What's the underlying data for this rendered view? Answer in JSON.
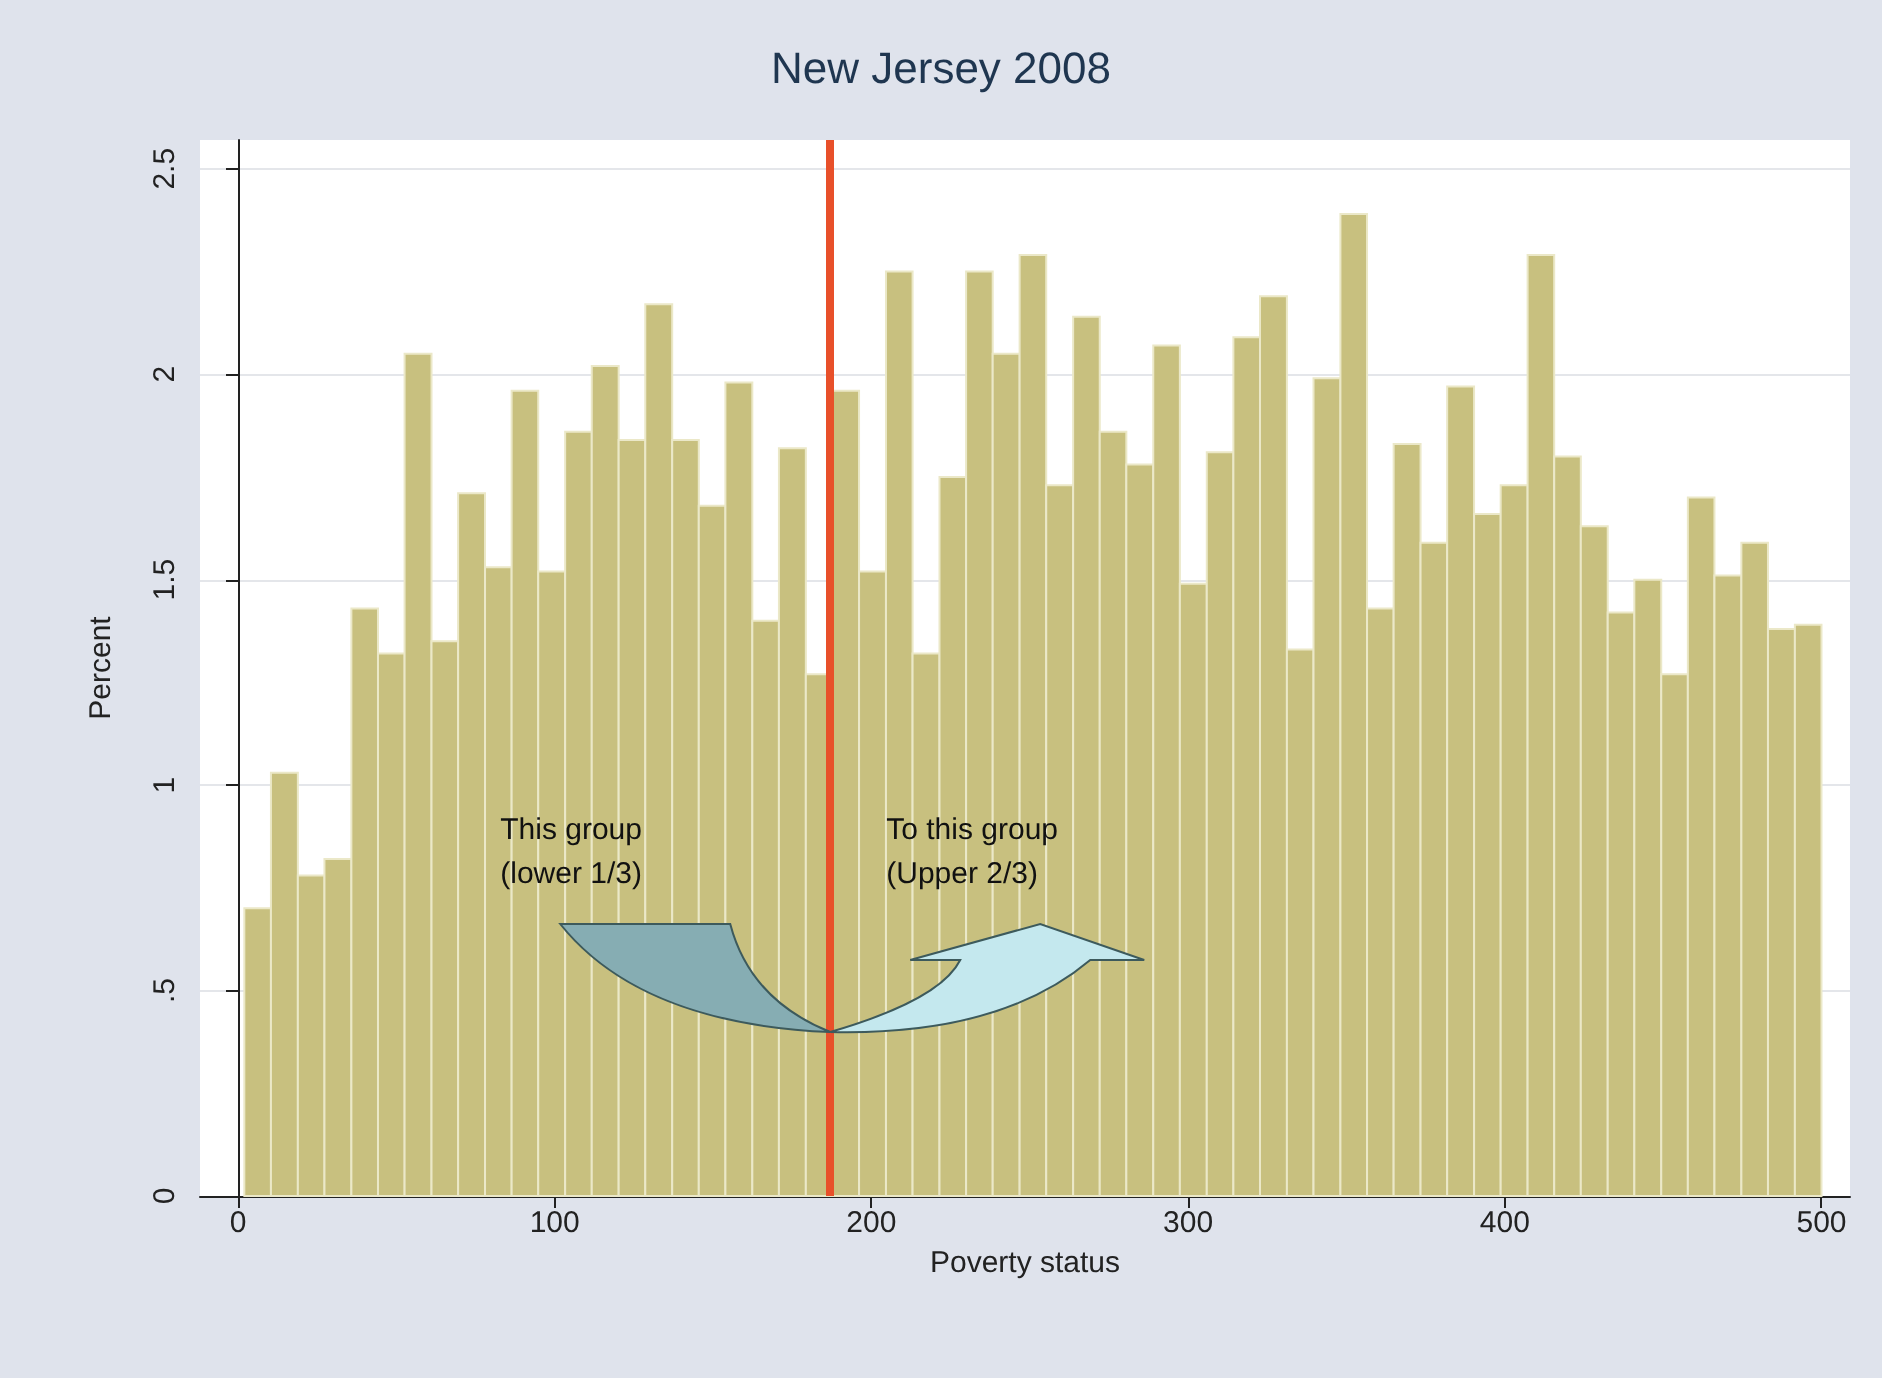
{
  "chart_data": {
    "type": "histogram",
    "title": "New Jersey 2008",
    "xlabel": "Poverty status",
    "ylabel": "Percent",
    "bins": [
      2.0,
      10.4,
      18.9,
      27.3,
      35.8,
      44.2,
      52.6,
      61.1,
      69.5,
      78.0,
      86.4,
      94.8,
      103.3,
      111.7,
      120.2,
      128.6,
      137.1,
      145.5,
      153.9,
      162.4,
      170.8,
      179.3,
      187.7,
      196.1,
      204.6,
      213.0,
      221.5,
      229.9,
      238.3,
      246.8,
      255.2,
      263.7,
      272.1,
      280.5,
      289.0,
      297.4,
      305.9,
      314.3,
      322.7,
      331.2,
      339.6,
      348.1,
      356.5,
      364.9,
      373.4,
      381.8,
      390.3,
      398.7,
      407.2,
      415.6,
      424.0,
      432.5,
      440.9,
      449.4,
      457.8,
      466.2,
      474.7,
      483.1,
      491.6,
      500.0
    ],
    "values": [
      0.7,
      1.03,
      0.78,
      0.82,
      1.43,
      1.32,
      2.05,
      1.35,
      1.71,
      1.53,
      1.96,
      1.52,
      1.86,
      2.02,
      1.84,
      2.17,
      1.84,
      1.68,
      1.98,
      1.4,
      1.82,
      1.27,
      1.96,
      1.52,
      2.25,
      1.32,
      1.75,
      2.25,
      2.05,
      2.29,
      1.73,
      2.14,
      1.86,
      1.78,
      2.07,
      1.49,
      1.81,
      2.09,
      2.19,
      1.33,
      1.99,
      2.39,
      1.43,
      1.83,
      1.59,
      1.97,
      1.66,
      1.73,
      2.29,
      1.8,
      1.63,
      1.42,
      1.5,
      1.27,
      1.7,
      1.51,
      1.59,
      1.38,
      1.39
    ],
    "color": "#c8c07f",
    "xlim": [
      -12,
      509
    ],
    "xticks": [
      0,
      100,
      200,
      300,
      400,
      500
    ],
    "ylim": [
      0,
      2.57
    ],
    "yticks": [
      0,
      {
        "value": 0.5,
        "label": ".5"
      },
      1,
      1.5,
      2,
      2.5
    ],
    "grid": "y",
    "legend": false,
    "ref_lines": [
      {
        "axis": "x",
        "value": 187,
        "color": "#e8502a"
      }
    ],
    "annotations": [
      "This group\n(lower 1/3)",
      "To this group\n(Upper 2/3)"
    ]
  }
}
